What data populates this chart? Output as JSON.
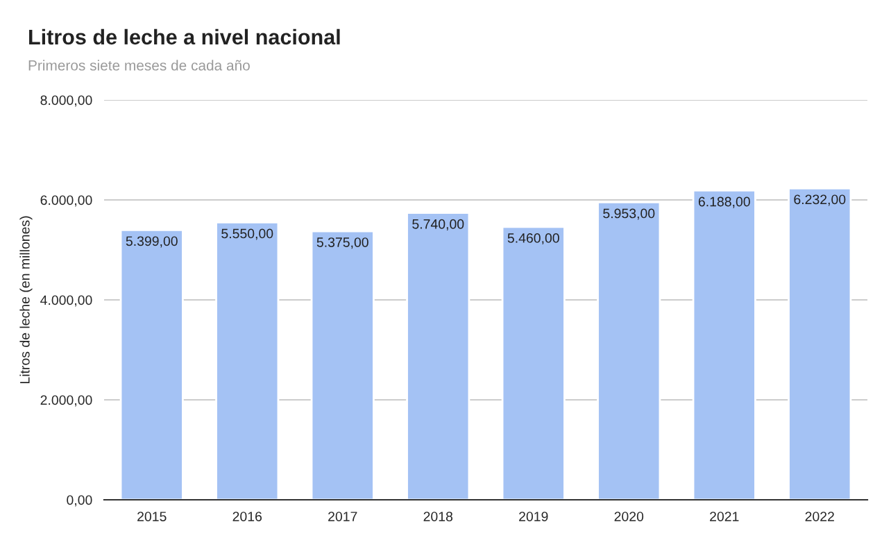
{
  "chart_data": {
    "type": "bar",
    "title": "Litros de leche a nivel nacional",
    "subtitle": "Primeros siete meses de cada año",
    "ylabel": "Litros de leche (en millones)",
    "categories": [
      "2015",
      "2016",
      "2017",
      "2018",
      "2019",
      "2020",
      "2021",
      "2022"
    ],
    "values": [
      5399,
      5550,
      5375,
      5740,
      5460,
      5953,
      6188,
      6232
    ],
    "value_labels": [
      "5.399,00",
      "5.550,00",
      "5.375,00",
      "5.740,00",
      "5.460,00",
      "5.953,00",
      "6.188,00",
      "6.232,00"
    ],
    "color": "#a4c2f4",
    "ylim": [
      0,
      8000
    ],
    "yticks": [
      {
        "value": 0,
        "label": "0,00"
      },
      {
        "value": 2000,
        "label": "2.000,00"
      },
      {
        "value": 4000,
        "label": "4.000,00"
      },
      {
        "value": 6000,
        "label": "6.000,00"
      },
      {
        "value": 8000,
        "label": "8.000,00"
      }
    ],
    "grid": "y",
    "legend": false
  }
}
